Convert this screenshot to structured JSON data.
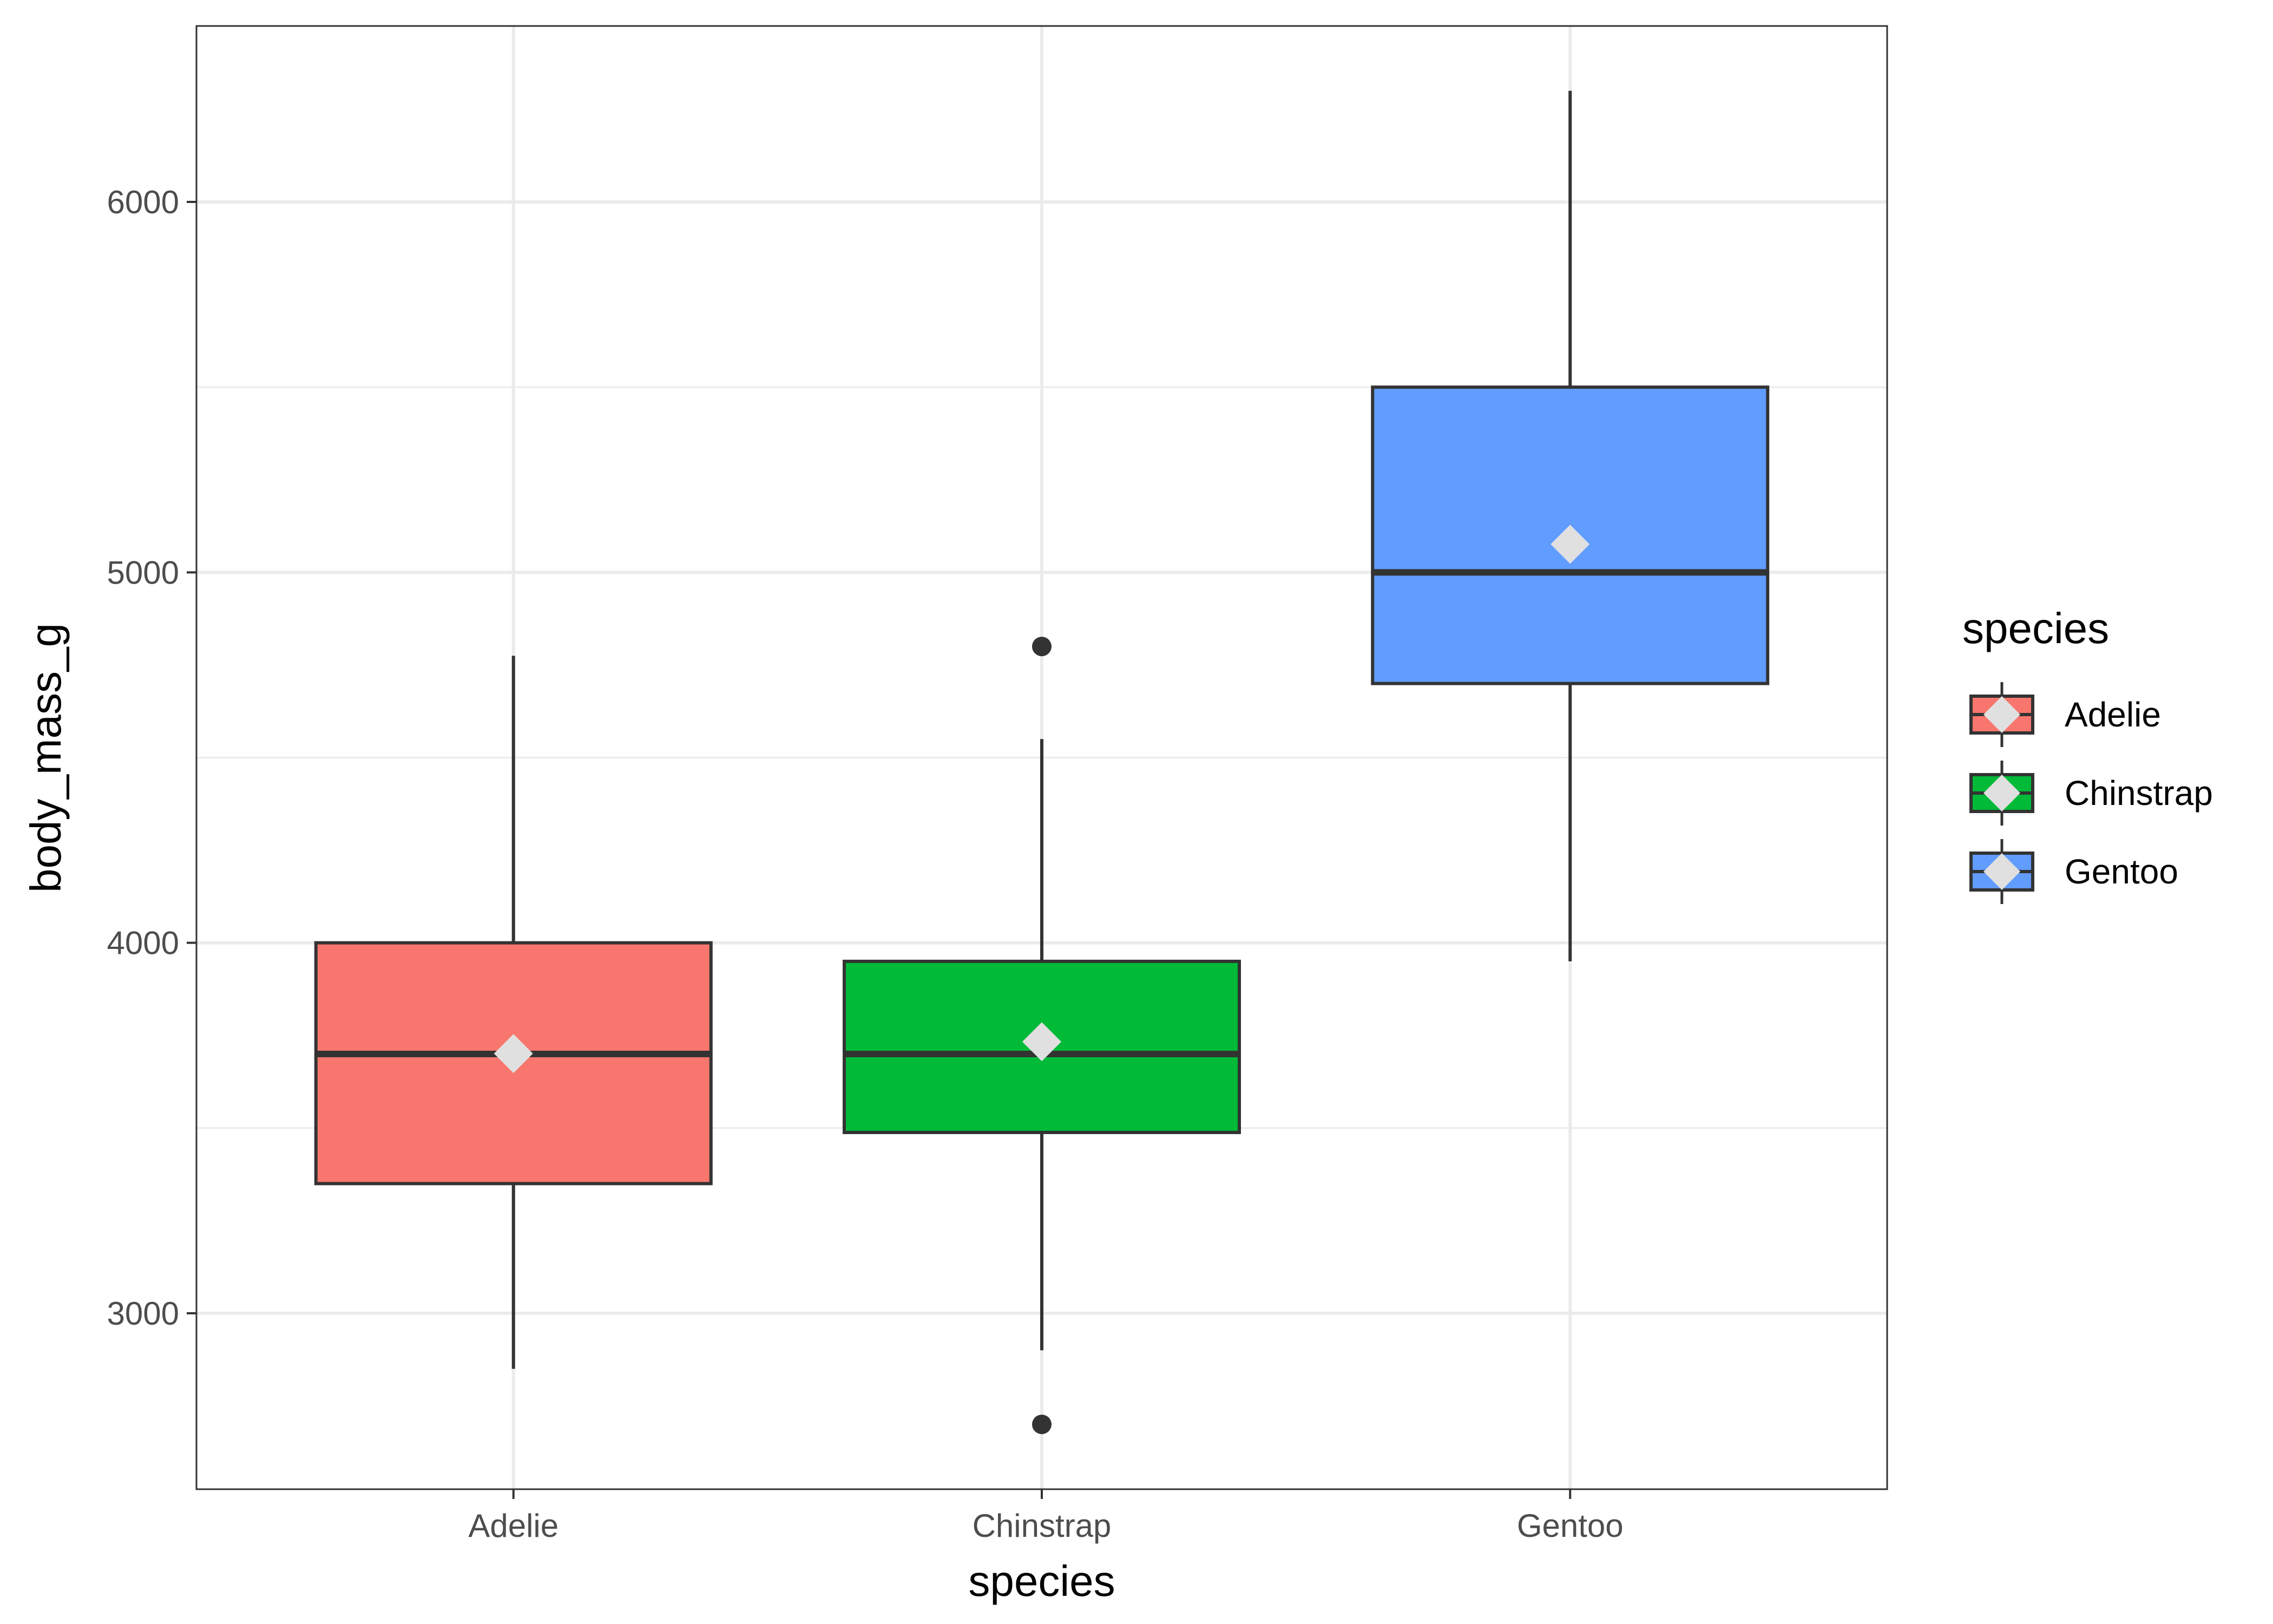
{
  "chart_data": {
    "type": "boxplot",
    "title": "",
    "xlabel": "species",
    "ylabel": "body_mass_g",
    "ylim": [
      2525,
      6475
    ],
    "y_ticks": [
      3000,
      4000,
      5000,
      6000
    ],
    "y_minor_ticks": [
      3500,
      4500,
      5500
    ],
    "grid": true,
    "legend": {
      "title": "species",
      "placement": "right"
    },
    "categories": [
      "Adelie",
      "Chinstrap",
      "Gentoo"
    ],
    "series": [
      {
        "name": "Adelie",
        "color": "#F8766D",
        "whisker_low": 2850,
        "q1": 3350,
        "median": 3700,
        "q3": 4000,
        "whisker_high": 4775,
        "mean": 3701,
        "outliers": []
      },
      {
        "name": "Chinstrap",
        "color": "#00BA38",
        "whisker_low": 2900,
        "q1": 3488,
        "median": 3700,
        "q3": 3950,
        "whisker_high": 4550,
        "mean": 3733,
        "outliers": [
          2700,
          4800
        ]
      },
      {
        "name": "Gentoo",
        "color": "#619CFF",
        "whisker_low": 3950,
        "q1": 4700,
        "median": 5000,
        "q3": 5500,
        "whisker_high": 6300,
        "mean": 5076,
        "outliers": []
      }
    ],
    "mean_marker_color": "#E0E0E0",
    "box_outline_color": "#333333"
  }
}
